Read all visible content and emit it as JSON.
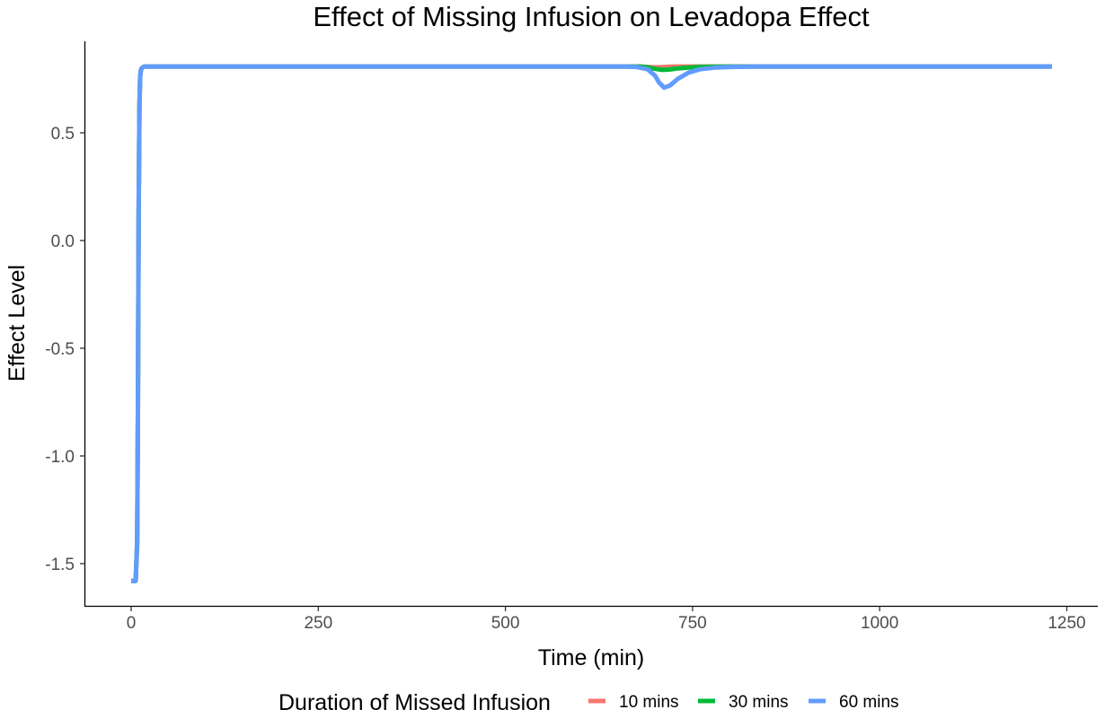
{
  "chart_data": {
    "type": "line",
    "title": "Effect of Missing Infusion on Levadopa Effect",
    "xlabel": "Time (min)",
    "ylabel": "Effect Level",
    "xlim": [
      -60,
      1295
    ],
    "ylim": [
      -1.7,
      0.92
    ],
    "xticks": [
      0,
      250,
      500,
      750,
      1000,
      1250
    ],
    "yticks": [
      -1.5,
      -1.0,
      -0.5,
      0.0,
      0.5
    ],
    "ytick_labels": [
      "-1.5",
      "-1.0",
      "-0.5",
      "0.0",
      "0.5"
    ],
    "grid": false,
    "legend": {
      "title": "Duration of Missed Infusion",
      "position": "bottom",
      "entries": [
        "10 mins",
        "30 mins",
        "60 mins"
      ]
    },
    "series": [
      {
        "name": "10 mins",
        "color": "#F8766D",
        "x": [
          0,
          4,
          6,
          8,
          9,
          10,
          11,
          12,
          13,
          14,
          16,
          18,
          20,
          100,
          300,
          500,
          680,
          690,
          700,
          710,
          720,
          730,
          1230
        ],
        "y": [
          -1.58,
          -1.58,
          -1.58,
          -1.4,
          -0.8,
          0.1,
          0.62,
          0.76,
          0.79,
          0.8,
          0.805,
          0.808,
          0.808,
          0.808,
          0.808,
          0.808,
          0.808,
          0.806,
          0.804,
          0.805,
          0.807,
          0.808,
          0.808
        ]
      },
      {
        "name": "30 mins",
        "color": "#00BA38",
        "x": [
          0,
          4,
          6,
          8,
          9,
          10,
          11,
          12,
          13,
          14,
          16,
          18,
          20,
          100,
          300,
          500,
          680,
          690,
          700,
          710,
          720,
          730,
          745,
          760,
          780,
          800,
          1230
        ],
        "y": [
          -1.58,
          -1.58,
          -1.58,
          -1.4,
          -0.8,
          0.1,
          0.62,
          0.76,
          0.79,
          0.8,
          0.805,
          0.808,
          0.808,
          0.808,
          0.808,
          0.808,
          0.808,
          0.804,
          0.797,
          0.792,
          0.794,
          0.799,
          0.803,
          0.806,
          0.807,
          0.808,
          0.808
        ]
      },
      {
        "name": "60 mins",
        "color": "#619CFF",
        "x": [
          0,
          4,
          6,
          8,
          9,
          10,
          11,
          12,
          13,
          14,
          16,
          18,
          20,
          100,
          300,
          500,
          660,
          675,
          690,
          700,
          705,
          712,
          720,
          730,
          745,
          760,
          780,
          800,
          830,
          1230
        ],
        "y": [
          -1.58,
          -1.58,
          -1.58,
          -1.4,
          -0.8,
          0.1,
          0.62,
          0.76,
          0.79,
          0.8,
          0.805,
          0.808,
          0.808,
          0.808,
          0.808,
          0.808,
          0.808,
          0.806,
          0.795,
          0.765,
          0.735,
          0.71,
          0.72,
          0.75,
          0.78,
          0.795,
          0.803,
          0.806,
          0.808,
          0.808
        ]
      }
    ]
  }
}
